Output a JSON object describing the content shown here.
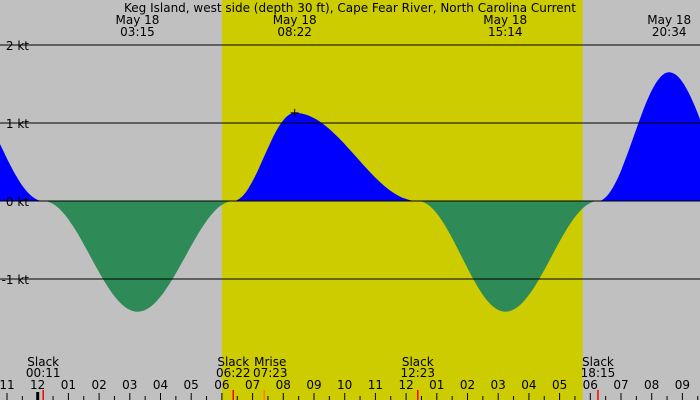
{
  "chart_data": {
    "type": "area",
    "title": "Keg Island, west side (depth 30 ft), Cape Fear River, North Carolina Current",
    "y_unit": "kt",
    "y_ticks": [
      {
        "value": 2,
        "label": "2 kt"
      },
      {
        "value": 1,
        "label": "1 kt"
      },
      {
        "value": 0,
        "label": "0 kt"
      },
      {
        "value": -1,
        "label": "-1 kt"
      }
    ],
    "ylim": [
      -2.6,
      2.0
    ],
    "x_start_hour": 23,
    "x_end_hour": 33.75,
    "x_hour_labels": [
      "11",
      "12",
      "01",
      "02",
      "03",
      "04",
      "05",
      "06",
      "07",
      "08",
      "09",
      "10",
      "11",
      "12",
      "01",
      "02",
      "03",
      "04",
      "05",
      "06",
      "07",
      "08",
      "09"
    ],
    "daylight_hours": [
      30.0,
      41.75
    ],
    "extrema": [
      {
        "date": "May 18",
        "time": "03:15",
        "hour": 27.25,
        "value": -1.42
      },
      {
        "date": "May 18",
        "time": "08:22",
        "hour": 32.37,
        "value": 1.13
      },
      {
        "date": "May 18",
        "time": "15:14",
        "hour": 39.23,
        "value": -1.42
      },
      {
        "date": "May 18",
        "time": "20:34",
        "hour": 44.57,
        "value": 1.65
      }
    ],
    "events": [
      {
        "label": "Slack",
        "time": "00:11",
        "hour": 24.18,
        "color": "#ff0000"
      },
      {
        "label": "Slack",
        "time": "06:22",
        "hour": 30.37,
        "color": "#ff0000"
      },
      {
        "label": "Mrise",
        "time": "07:23",
        "hour": 31.38,
        "color": "#ff8000"
      },
      {
        "label": "Slack",
        "time": "12:23",
        "hour": 36.38,
        "color": "#ff0000"
      },
      {
        "label": "Slack",
        "time": "18:15",
        "hour": 42.25,
        "color": "#ff0000"
      }
    ],
    "colors": {
      "night": "#c0c0c0",
      "day": "#cccc00",
      "flood": "#0000ff",
      "ebb": "#2e8b57"
    }
  }
}
